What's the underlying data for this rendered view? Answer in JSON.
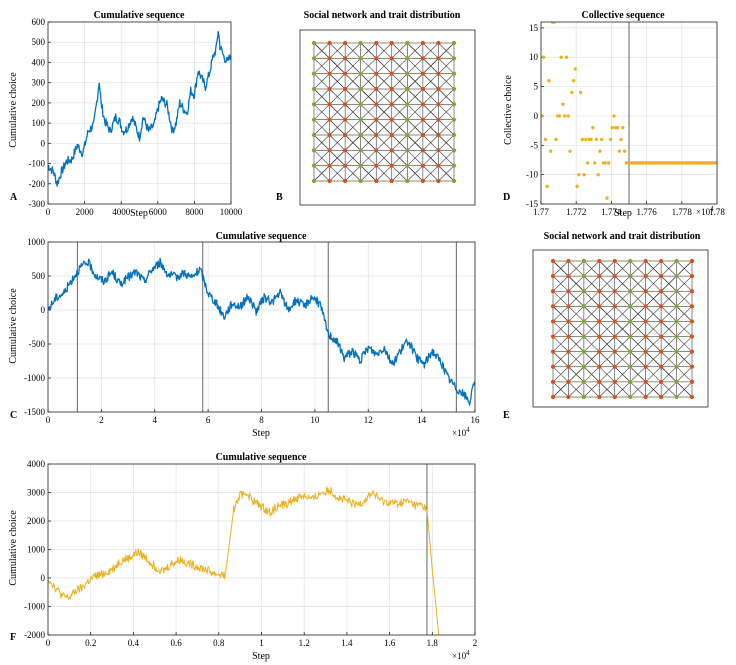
{
  "colors": {
    "blue_series": "#0072bd",
    "orange_series": "#edb120",
    "node_red": "#d95319",
    "node_green": "#77ac30",
    "edge": "#2b2b2b",
    "event_line": "#555555"
  },
  "chart_data": [
    {
      "id": "A",
      "type": "line",
      "panel_letter": "A",
      "title": "Cumulative sequence",
      "xlabel": "Step",
      "ylabel": "Cumulative choice",
      "xlim": [
        0,
        10000
      ],
      "ylim": [
        -300,
        600
      ],
      "xticks": [
        0,
        2000,
        4000,
        6000,
        8000,
        10000
      ],
      "xtick_labels": [
        "0",
        "2000",
        "4000",
        "6000",
        "8000",
        "10000"
      ],
      "yticks": [
        -300,
        -200,
        -100,
        0,
        100,
        200,
        300,
        400,
        500,
        600
      ],
      "ytick_labels": [
        "-300",
        "-200",
        "-100",
        "0",
        "100",
        "200",
        "300",
        "400",
        "500",
        "600"
      ],
      "grid": true,
      "color": "#0072bd",
      "series": [
        {
          "x": [
            0,
            300,
            500,
            700,
            1000,
            1300,
            1600,
            1900,
            2200,
            2500,
            2700,
            2800,
            2900,
            3100,
            3400,
            3700,
            3900,
            4100,
            4300,
            4600,
            4800,
            5000,
            5200,
            5500,
            5800,
            6000,
            6200,
            6500,
            6800,
            7000,
            7200,
            7400,
            7600,
            7800,
            8000,
            8200,
            8400,
            8600,
            8800,
            9000,
            9200,
            9300,
            9400,
            9600,
            9800,
            10000
          ],
          "y": [
            -110,
            -140,
            -200,
            -150,
            -90,
            -80,
            -10,
            -50,
            60,
            90,
            230,
            310,
            200,
            110,
            60,
            130,
            110,
            60,
            70,
            130,
            80,
            30,
            130,
            60,
            90,
            170,
            220,
            190,
            60,
            100,
            200,
            170,
            150,
            260,
            240,
            360,
            320,
            280,
            340,
            420,
            470,
            560,
            480,
            430,
            400,
            440
          ]
        }
      ]
    },
    {
      "id": "D",
      "type": "scatter",
      "panel_letter": "D",
      "title": "Collective sequence",
      "xlabel": "Step",
      "ylabel": "Collective choice",
      "xlim": [
        17700,
        17800
      ],
      "ylim": [
        -15,
        16
      ],
      "xticks": [
        17700,
        17720,
        17740,
        17760,
        17780,
        17800
      ],
      "xtick_labels": [
        "1.77",
        "1.772",
        "1.774",
        "1.776",
        "1.778",
        "1.78"
      ],
      "x_exponent": "×10",
      "x_exponent_power": "4",
      "yticks": [
        -15,
        -10,
        -5,
        0,
        5,
        10,
        15
      ],
      "ytick_labels": [
        "-15",
        "-10",
        "-5",
        "0",
        "5",
        "10",
        "15"
      ],
      "grid": true,
      "color": "#edb120",
      "event_line_x": 17750,
      "series": [
        {
          "x": [
            17700.5,
            17701.5,
            17702.5,
            17703.5,
            17704.5,
            17705.5,
            17706.5,
            17707.5,
            17708.5,
            17709.5,
            17710.5,
            17711.5,
            17712.5,
            17713.5,
            17714.5,
            17715.5,
            17716.5,
            17717.5,
            17718.5,
            17719.5,
            17720.5,
            17721.5,
            17722.5,
            17723.5,
            17724.5,
            17725.5,
            17726.5,
            17727.5,
            17728.5,
            17729.5,
            17730.5,
            17731.5,
            17732.5,
            17733.5,
            17734.5,
            17735.5,
            17736.5,
            17737.5,
            17738.5,
            17739.5,
            17740.5,
            17741.5,
            17742.5,
            17743.5,
            17744.5,
            17745.5,
            17746.5,
            17747.5,
            17748.5,
            17749.5,
            17750,
            17752,
            17755,
            17758,
            17761,
            17764,
            17767,
            17770,
            17773,
            17776,
            17779,
            17782,
            17785,
            17788,
            17791,
            17794,
            17797,
            17800
          ],
          "y": [
            0,
            10,
            -4,
            -12,
            6,
            -6,
            16,
            16,
            -4,
            0,
            0,
            10,
            2,
            0,
            10,
            0,
            -6,
            4,
            6,
            8,
            -12,
            -10,
            4,
            -4,
            -10,
            -4,
            -8,
            -4,
            -4,
            -2,
            -8,
            -4,
            -10,
            -6,
            -4,
            -8,
            -8,
            -14,
            -8,
            -4,
            -2,
            0,
            -2,
            -2,
            -6,
            -4,
            -2,
            -6,
            -8,
            -8,
            -8,
            -8,
            -8,
            -8,
            -8,
            -8,
            -8,
            -8,
            -8,
            -8,
            -8,
            -8,
            -8,
            -8,
            -8,
            -8,
            -8,
            -8
          ]
        }
      ]
    },
    {
      "id": "C",
      "type": "line",
      "panel_letter": "C",
      "title": "Cumulative sequence",
      "xlabel": "Step",
      "ylabel": "Cumulative choice",
      "xlim": [
        0,
        160000
      ],
      "ylim": [
        -1500,
        1000
      ],
      "xticks": [
        0,
        20000,
        40000,
        60000,
        80000,
        100000,
        120000,
        140000,
        160000
      ],
      "xtick_labels": [
        "0",
        "2",
        "4",
        "6",
        "8",
        "10",
        "12",
        "14",
        "16"
      ],
      "x_exponent": "×10",
      "x_exponent_power": "4",
      "yticks": [
        -1500,
        -1000,
        -500,
        0,
        500,
        1000
      ],
      "ytick_labels": [
        "-1500",
        "-1000",
        "-500",
        "0",
        "500",
        "1000"
      ],
      "grid": true,
      "color": "#0072bd",
      "event_lines_x": [
        11000,
        58000,
        105000,
        153000
      ],
      "series": [
        {
          "x": [
            0,
            3000,
            6000,
            9000,
            12000,
            15000,
            18000,
            21000,
            24000,
            27000,
            30000,
            33000,
            36000,
            39000,
            42000,
            45000,
            48000,
            51000,
            54000,
            57000,
            60000,
            63000,
            66000,
            69000,
            72000,
            75000,
            78000,
            81000,
            84000,
            87000,
            90000,
            93000,
            96000,
            99000,
            102000,
            105000,
            108000,
            111000,
            114000,
            117000,
            120000,
            123000,
            126000,
            129000,
            132000,
            135000,
            138000,
            141000,
            144000,
            147000,
            150000,
            153000,
            156000,
            158000,
            160000
          ],
          "y": [
            0,
            180,
            250,
            450,
            620,
            700,
            500,
            420,
            560,
            380,
            480,
            560,
            420,
            600,
            700,
            520,
            480,
            550,
            470,
            600,
            250,
            100,
            -100,
            100,
            50,
            200,
            -20,
            180,
            120,
            250,
            0,
            150,
            50,
            200,
            80,
            -350,
            -450,
            -700,
            -600,
            -750,
            -550,
            -650,
            -550,
            -800,
            -600,
            -450,
            -700,
            -800,
            -600,
            -750,
            -1000,
            -1150,
            -1250,
            -1350,
            -1050
          ]
        }
      ]
    },
    {
      "id": "F",
      "type": "line",
      "panel_letter": "F",
      "title": "Cumulative sequence",
      "xlabel": "Step",
      "ylabel": "Cumulative choice",
      "xlim": [
        0,
        20000
      ],
      "ylim": [
        -2000,
        4000
      ],
      "xticks": [
        0,
        2000,
        4000,
        6000,
        8000,
        10000,
        12000,
        14000,
        16000,
        18000,
        20000
      ],
      "xtick_labels": [
        "0",
        "0.2",
        "0.4",
        "0.6",
        "0.8",
        "1",
        "1.2",
        "1.4",
        "1.6",
        "1.8",
        "2"
      ],
      "x_exponent": "×10",
      "x_exponent_power": "4",
      "yticks": [
        -2000,
        -1000,
        0,
        1000,
        2000,
        3000,
        4000
      ],
      "ytick_labels": [
        "-2000",
        "-1000",
        "0",
        "1000",
        "2000",
        "3000",
        "4000"
      ],
      "grid": true,
      "color": "#edb120",
      "event_line_x": 17750,
      "series": [
        {
          "x": [
            0,
            300,
            700,
            1000,
            1300,
            1600,
            1900,
            2200,
            2600,
            3000,
            3400,
            3800,
            4200,
            4600,
            5000,
            5400,
            5800,
            6200,
            6600,
            7000,
            7400,
            7800,
            8300,
            8700,
            9000,
            9300,
            9600,
            10000,
            10400,
            10800,
            11200,
            11600,
            12000,
            12400,
            12800,
            13200,
            13600,
            14000,
            14400,
            14800,
            15200,
            15600,
            16000,
            16400,
            16800,
            17200,
            17500,
            17750,
            18000,
            18300
          ],
          "y": [
            0,
            -300,
            -650,
            -700,
            -450,
            -350,
            -100,
            50,
            150,
            300,
            600,
            700,
            900,
            700,
            400,
            250,
            500,
            650,
            500,
            400,
            300,
            150,
            100,
            2400,
            2900,
            3000,
            2700,
            2500,
            2300,
            2550,
            2600,
            2800,
            2900,
            2750,
            3000,
            3100,
            2800,
            2700,
            2550,
            2700,
            3000,
            2700,
            2650,
            2600,
            2700,
            2550,
            2550,
            2400,
            300,
            -2000
          ]
        }
      ]
    }
  ],
  "networks": [
    {
      "id": "B",
      "panel_letter": "B",
      "title": "Social network and trait distribution"
    },
    {
      "id": "E",
      "panel_letter": "E",
      "title": "Social network and trait distribution"
    }
  ]
}
